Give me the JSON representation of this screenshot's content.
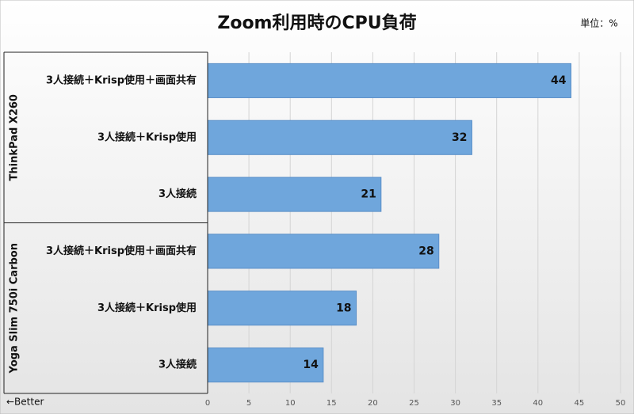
{
  "chart_data": {
    "type": "bar",
    "orientation": "horizontal",
    "title": "Zoom利用時のCPU負荷",
    "unit_note": "単位：%",
    "annotation": "←Better",
    "color": "#6fa6dc",
    "grid": true,
    "groups": [
      {
        "name": "ThinkPad X260",
        "categories": [
          "3人接続＋Krisp使用＋画面共有",
          "3人接続＋Krisp使用",
          "3人接続"
        ],
        "values": [
          44,
          32,
          21
        ]
      },
      {
        "name": "Yoga Slim 750i Carbon",
        "categories": [
          "3人接続＋Krisp使用＋画面共有",
          "3人接続＋Krisp使用",
          "3人接続"
        ],
        "values": [
          28,
          18,
          14
        ]
      }
    ],
    "xlim": [
      0,
      50
    ],
    "xticks": [
      0,
      5,
      10,
      15,
      20,
      25,
      30,
      35,
      40,
      45,
      50
    ]
  }
}
